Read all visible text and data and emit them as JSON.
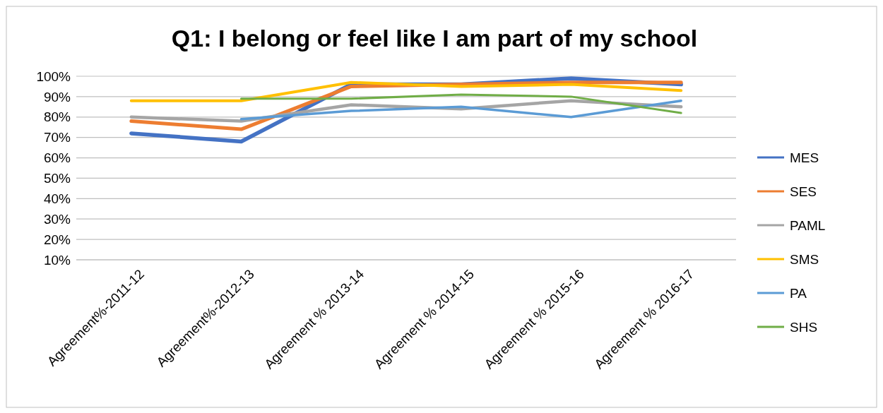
{
  "chart_data": {
    "type": "line",
    "title": "Q1: I belong or feel like I am part of my school",
    "categories": [
      "Agreement%-2011-12",
      "Agreement%-2012-13",
      "Agreement % 2013-14",
      "Agreement % 2014-15",
      "Agreement % 2015-16",
      "Agreement % 2016-17"
    ],
    "series": [
      {
        "name": "MES",
        "color": "#4472c4",
        "values": [
          72,
          68,
          96,
          96,
          99,
          96
        ]
      },
      {
        "name": "SES",
        "color": "#ed7d31",
        "values": [
          78,
          74,
          95,
          96,
          97,
          97
        ]
      },
      {
        "name": "PAML",
        "color": "#a5a5a5",
        "values": [
          80,
          78,
          86,
          84,
          88,
          85
        ]
      },
      {
        "name": "SMS",
        "color": "#ffc000",
        "values": [
          88,
          88,
          97,
          95,
          96,
          93
        ]
      },
      {
        "name": "PA",
        "color": "#5b9bd5",
        "values": [
          null,
          79,
          83,
          85,
          80,
          88
        ]
      },
      {
        "name": "SHS",
        "color": "#70ad47",
        "values": [
          null,
          89,
          89,
          91,
          90,
          82
        ]
      }
    ],
    "ylim": [
      10,
      100
    ],
    "yticks": [
      {
        "value": 10,
        "label": "10%"
      },
      {
        "value": 20,
        "label": "20%"
      },
      {
        "value": 30,
        "label": "30%"
      },
      {
        "value": 40,
        "label": "40%"
      },
      {
        "value": 50,
        "label": "50%"
      },
      {
        "value": 60,
        "label": "60%"
      },
      {
        "value": 70,
        "label": "70%"
      },
      {
        "value": 80,
        "label": "80%"
      },
      {
        "value": 90,
        "label": "90%"
      },
      {
        "value": 100,
        "label": "100%"
      }
    ],
    "grid": "y",
    "legend": "right",
    "marker": "none",
    "line_style": "solid"
  }
}
